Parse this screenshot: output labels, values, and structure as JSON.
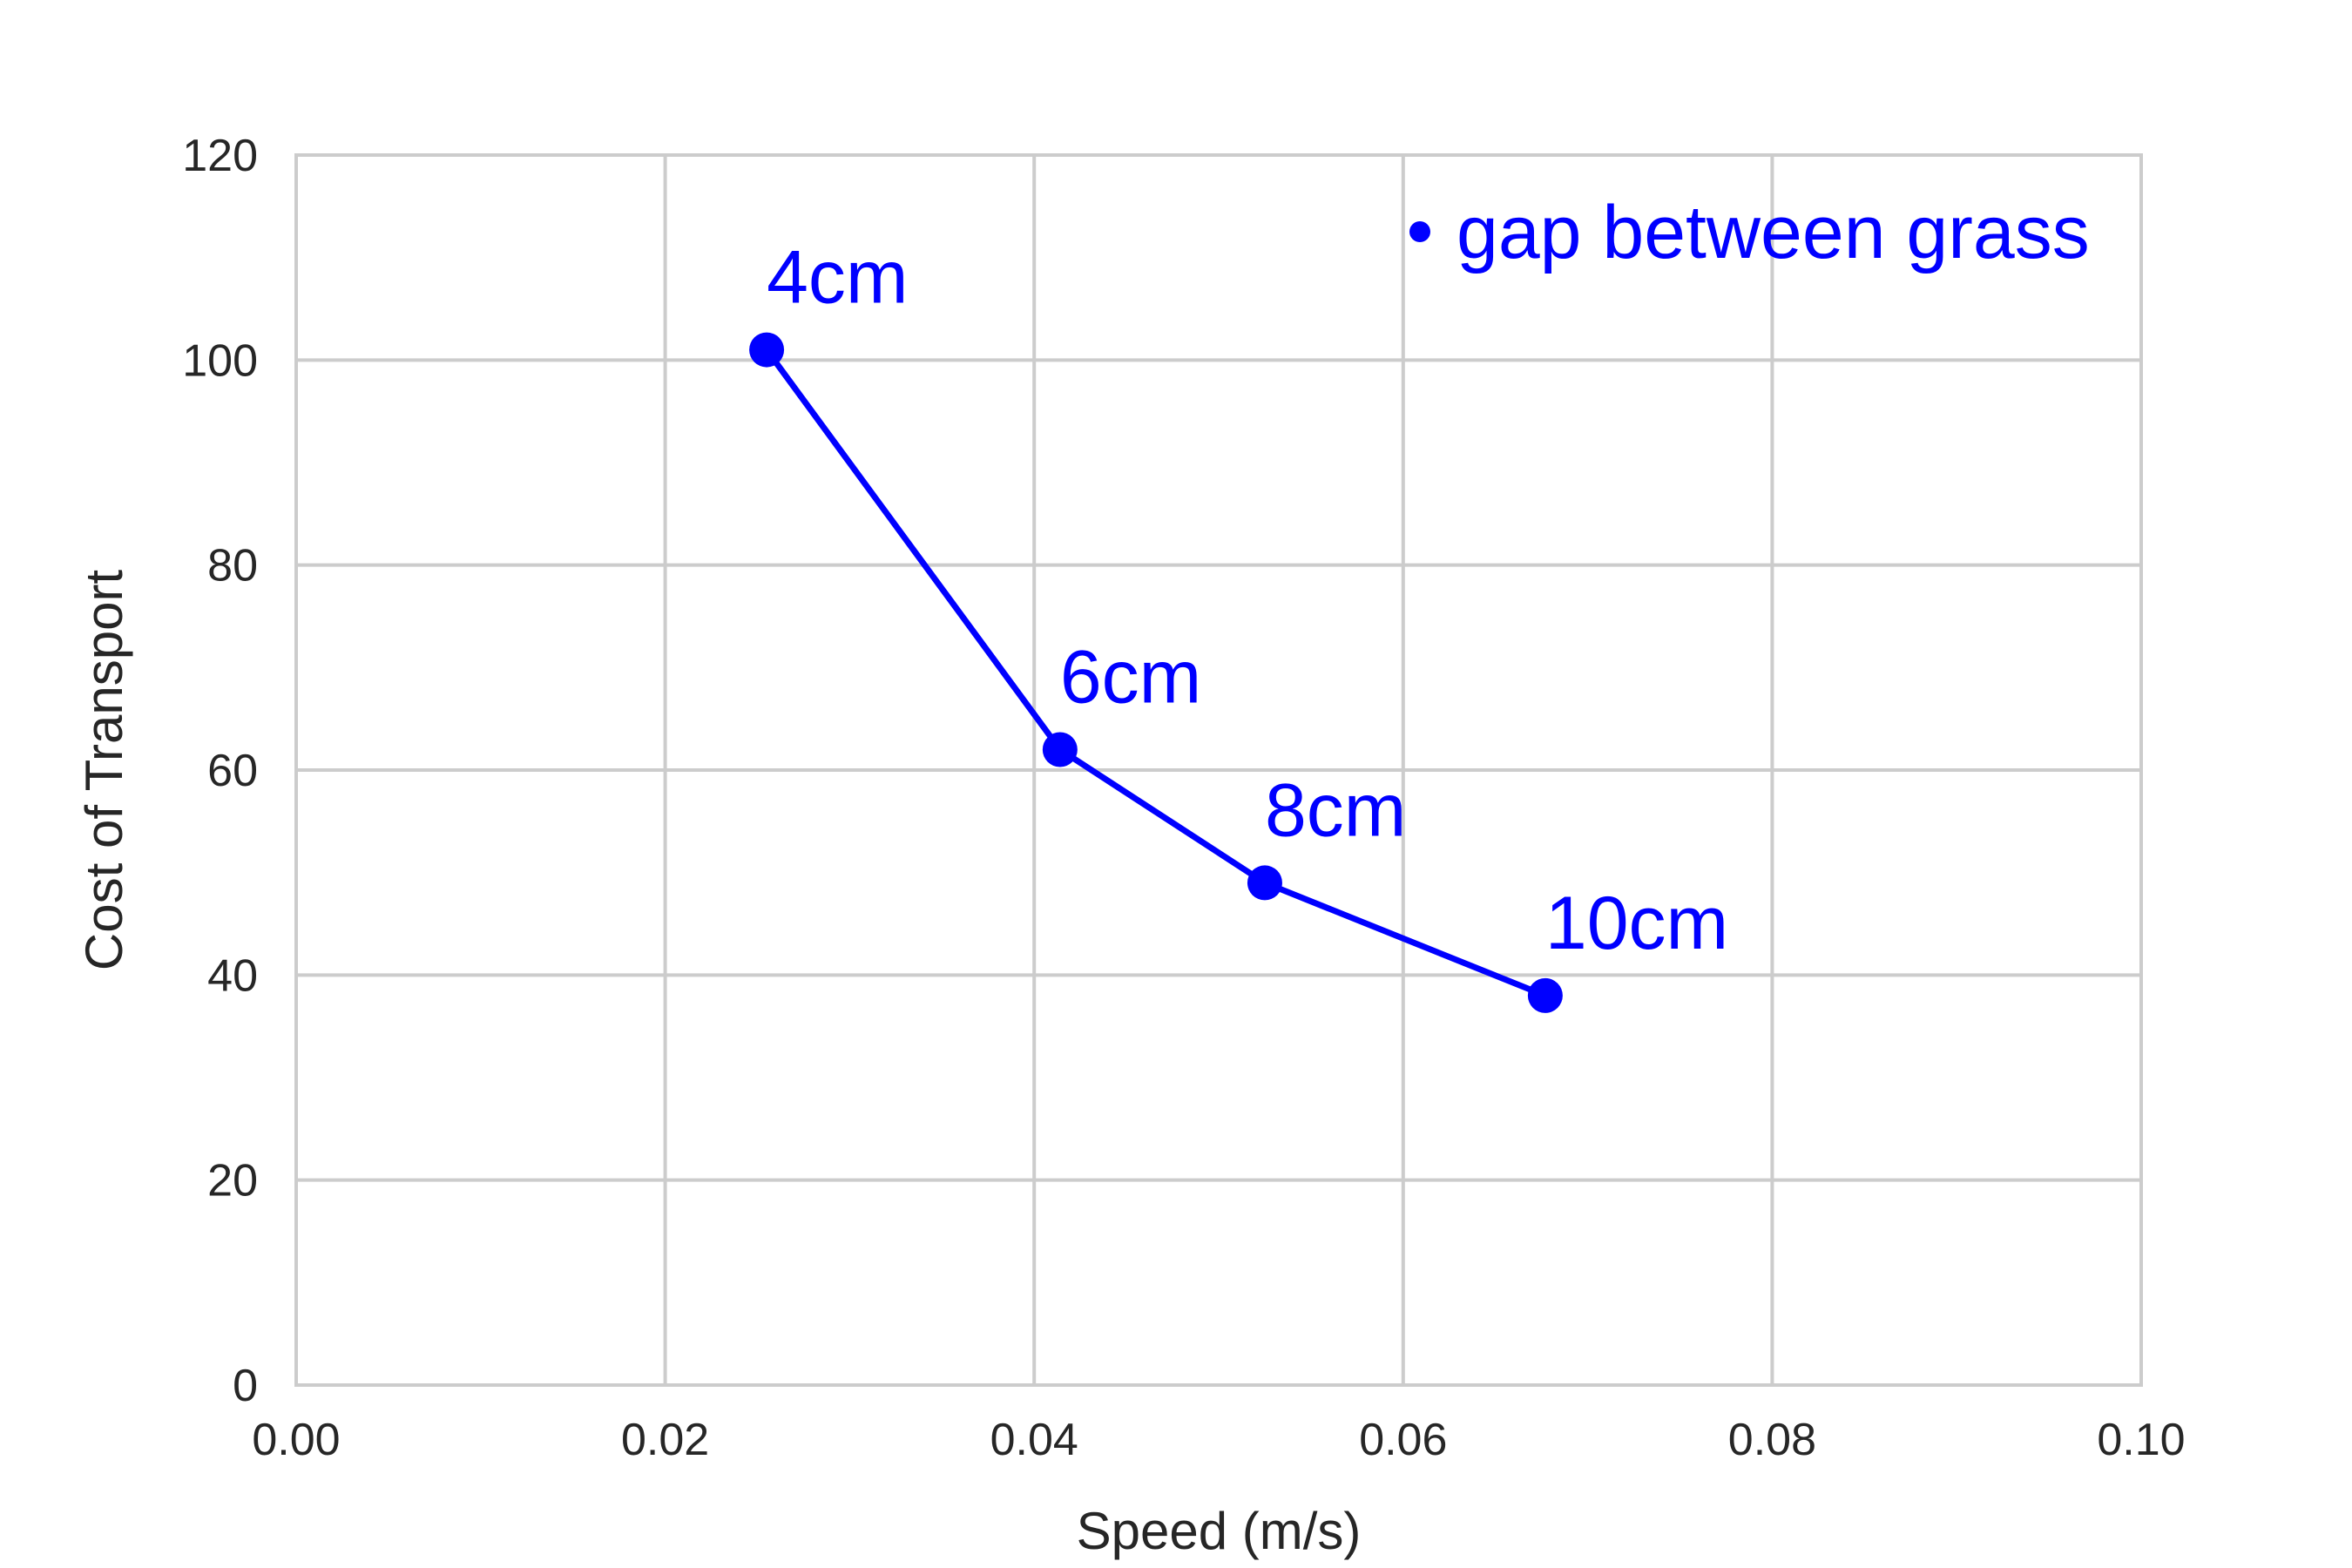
{
  "chart_data": {
    "type": "line",
    "xlabel": "Speed (m/s)",
    "ylabel": "Cost of Transport",
    "xlim": [
      0.0,
      0.1
    ],
    "ylim": [
      0,
      120
    ],
    "x_ticks": [
      0.0,
      0.02,
      0.04,
      0.06,
      0.08,
      0.1
    ],
    "x_tick_labels": [
      "0.00",
      "0.02",
      "0.04",
      "0.06",
      "0.08",
      "0.10"
    ],
    "y_ticks": [
      0,
      20,
      40,
      60,
      80,
      100,
      120
    ],
    "y_tick_labels": [
      "0",
      "20",
      "40",
      "60",
      "80",
      "100",
      "120"
    ],
    "grid": true,
    "legend_position": "top-right",
    "series": [
      {
        "name": "gap between grass",
        "color": "#0000ff",
        "marker": "circle",
        "x": [
          0.0255,
          0.0414,
          0.0525,
          0.0677
        ],
        "y": [
          101,
          62,
          49,
          38
        ],
        "point_labels": [
          "4cm",
          "6cm",
          "8cm",
          "10cm"
        ]
      }
    ]
  }
}
